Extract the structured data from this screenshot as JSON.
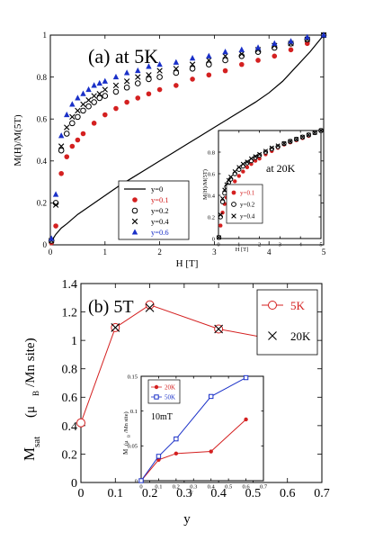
{
  "chart_data": [
    {
      "panel": "a",
      "type": "scatter",
      "title": "(a) at 5K",
      "xlabel": "H [T]",
      "ylabel": "M(H)/M(5T)",
      "xlim": [
        0,
        5
      ],
      "ylim": [
        0,
        1
      ],
      "xticks": [
        "0",
        "1",
        "2",
        "3",
        "4",
        "5"
      ],
      "yticks": [
        "0",
        "0.2",
        "0.4",
        "0.6",
        "0.8",
        "1"
      ],
      "legend_position": "lower-left",
      "series": [
        {
          "name": "y=0",
          "marker": "line",
          "color": "#000000",
          "x": [
            0,
            0.05,
            0.1,
            0.2,
            0.3,
            0.5,
            0.75,
            1,
            1.25,
            1.5,
            1.75,
            2,
            2.25,
            2.5,
            2.75,
            3,
            3.25,
            3.5,
            3.75,
            4,
            4.25,
            4.5,
            4.75,
            5
          ],
          "y": [
            0,
            0.03,
            0.05,
            0.08,
            0.1,
            0.145,
            0.19,
            0.235,
            0.28,
            0.32,
            0.36,
            0.4,
            0.44,
            0.48,
            0.52,
            0.56,
            0.6,
            0.64,
            0.68,
            0.725,
            0.78,
            0.85,
            0.92,
            1.0
          ]
        },
        {
          "name": "y=0.1",
          "marker": "filled-circle",
          "color": "#d42020",
          "x": [
            0.02,
            0.1,
            0.2,
            0.3,
            0.4,
            0.5,
            0.6,
            0.8,
            1.0,
            1.2,
            1.4,
            1.6,
            1.8,
            2.0,
            2.3,
            2.6,
            2.9,
            3.2,
            3.5,
            3.8,
            4.1,
            4.4,
            4.7,
            5.0
          ],
          "y": [
            0.01,
            0.09,
            0.34,
            0.42,
            0.47,
            0.5,
            0.53,
            0.58,
            0.62,
            0.65,
            0.68,
            0.7,
            0.72,
            0.74,
            0.76,
            0.79,
            0.81,
            0.83,
            0.86,
            0.88,
            0.9,
            0.93,
            0.96,
            1.0
          ]
        },
        {
          "name": "y=0.2",
          "marker": "open-circle",
          "color": "#000000",
          "x": [
            0.02,
            0.1,
            0.2,
            0.3,
            0.4,
            0.5,
            0.6,
            0.7,
            0.8,
            0.9,
            1.0,
            1.2,
            1.4,
            1.6,
            1.8,
            2.0,
            2.3,
            2.6,
            2.9,
            3.2,
            3.5,
            3.8,
            4.1,
            4.4,
            4.7,
            5.0
          ],
          "y": [
            0.02,
            0.2,
            0.45,
            0.53,
            0.58,
            0.61,
            0.64,
            0.66,
            0.68,
            0.7,
            0.71,
            0.73,
            0.75,
            0.77,
            0.79,
            0.8,
            0.82,
            0.84,
            0.86,
            0.88,
            0.9,
            0.92,
            0.94,
            0.96,
            0.98,
            1.0
          ]
        },
        {
          "name": "y=0.4",
          "marker": "cross",
          "color": "#000000",
          "x": [
            0.02,
            0.1,
            0.2,
            0.3,
            0.4,
            0.5,
            0.6,
            0.7,
            0.8,
            0.9,
            1.0,
            1.2,
            1.4,
            1.6,
            1.8,
            2.0,
            2.3,
            2.6,
            2.9,
            3.2,
            3.5,
            3.8,
            4.1,
            4.4,
            4.7,
            5.0
          ],
          "y": [
            0.02,
            0.19,
            0.47,
            0.56,
            0.61,
            0.64,
            0.67,
            0.69,
            0.71,
            0.72,
            0.74,
            0.76,
            0.78,
            0.8,
            0.81,
            0.83,
            0.84,
            0.86,
            0.88,
            0.9,
            0.91,
            0.93,
            0.95,
            0.96,
            0.98,
            1.0
          ]
        },
        {
          "name": "y=0.6",
          "marker": "filled-triangle",
          "color": "#1a30c8",
          "x": [
            0.02,
            0.1,
            0.2,
            0.3,
            0.4,
            0.5,
            0.6,
            0.7,
            0.8,
            0.9,
            1.0,
            1.2,
            1.4,
            1.6,
            1.8,
            2.0,
            2.3,
            2.6,
            2.9,
            3.2,
            3.5,
            3.8,
            4.1,
            4.4,
            4.7,
            5.0
          ],
          "y": [
            0.03,
            0.24,
            0.52,
            0.62,
            0.67,
            0.7,
            0.72,
            0.74,
            0.76,
            0.77,
            0.78,
            0.8,
            0.82,
            0.83,
            0.85,
            0.86,
            0.87,
            0.89,
            0.9,
            0.92,
            0.93,
            0.94,
            0.96,
            0.97,
            0.99,
            1.0
          ]
        }
      ],
      "inset": {
        "annotation": "at 20K",
        "xlabel": "H [T]",
        "ylabel": "M(H)/M(5T)",
        "xlim": [
          0,
          5
        ],
        "ylim": [
          0,
          1
        ],
        "xticks": [
          "0",
          "1",
          "2",
          "3",
          "4",
          "5"
        ],
        "yticks": [
          "0",
          "0.2",
          "0.4",
          "0.6",
          "0.8"
        ],
        "series": [
          {
            "name": "y=0.1",
            "marker": "filled-circle",
            "color": "#d42020",
            "x": [
              0.02,
              0.1,
              0.2,
              0.3,
              0.4,
              0.5,
              0.6,
              0.8,
              1.0,
              1.2,
              1.4,
              1.6,
              1.8,
              2.0,
              2.3,
              2.6,
              2.9,
              3.2,
              3.5,
              3.8,
              4.1,
              4.4,
              4.7,
              5.0
            ],
            "y": [
              0.01,
              0.12,
              0.24,
              0.32,
              0.38,
              0.43,
              0.47,
              0.53,
              0.58,
              0.62,
              0.66,
              0.69,
              0.72,
              0.74,
              0.78,
              0.81,
              0.84,
              0.87,
              0.89,
              0.91,
              0.93,
              0.95,
              0.98,
              1.0
            ]
          },
          {
            "name": "y=0.2",
            "marker": "open-circle",
            "color": "#000000",
            "x": [
              0.02,
              0.1,
              0.2,
              0.3,
              0.4,
              0.5,
              0.6,
              0.8,
              1.0,
              1.2,
              1.4,
              1.6,
              1.8,
              2.0,
              2.3,
              2.6,
              2.9,
              3.2,
              3.5,
              3.8,
              4.1,
              4.4,
              4.7,
              5.0
            ],
            "y": [
              0.01,
              0.2,
              0.34,
              0.42,
              0.48,
              0.52,
              0.55,
              0.6,
              0.64,
              0.67,
              0.7,
              0.72,
              0.75,
              0.77,
              0.8,
              0.83,
              0.85,
              0.88,
              0.9,
              0.92,
              0.94,
              0.96,
              0.98,
              1.0
            ]
          },
          {
            "name": "y=0.4",
            "marker": "cross",
            "color": "#000000",
            "x": [
              0.02,
              0.1,
              0.2,
              0.3,
              0.4,
              0.5,
              0.6,
              0.8,
              1.0,
              1.2,
              1.4,
              1.6,
              1.8,
              2.0,
              2.3,
              2.6,
              2.9,
              3.2,
              3.5,
              3.8,
              4.1,
              4.4,
              4.7,
              5.0
            ],
            "y": [
              0.01,
              0.22,
              0.37,
              0.45,
              0.5,
              0.54,
              0.57,
              0.62,
              0.66,
              0.69,
              0.71,
              0.74,
              0.76,
              0.78,
              0.81,
              0.84,
              0.86,
              0.88,
              0.9,
              0.92,
              0.94,
              0.96,
              0.98,
              1.0
            ]
          }
        ]
      }
    },
    {
      "panel": "b",
      "type": "line",
      "title": "(b) 5T",
      "xlabel": "y",
      "ylabel_main": "M",
      "ylabel_sub": "sat",
      "ylabel_rest": "(μ",
      "ylabel_sub2": "B",
      "ylabel_end": "/Mn site)",
      "xlim": [
        0,
        0.7
      ],
      "ylim": [
        0,
        1.4
      ],
      "xticks": [
        "0",
        "0.1",
        "0.2",
        "0.3",
        "0.4",
        "0.5",
        "0.6",
        "0.7"
      ],
      "yticks": [
        "0",
        "0.2",
        "0.4",
        "0.6",
        "0.8",
        "1",
        "1.2",
        "1.4"
      ],
      "legend_position": "top-right",
      "series": [
        {
          "name": "5K",
          "marker": "open-circle-line",
          "color": "#d42020",
          "x": [
            0,
            0.1,
            0.2,
            0.4,
            0.6
          ],
          "y": [
            0.42,
            1.09,
            1.25,
            1.08,
            0.99
          ]
        },
        {
          "name": "20K",
          "marker": "cross",
          "color": "#000000",
          "x": [
            0.1,
            0.2,
            0.4
          ],
          "y": [
            1.09,
            1.23,
            1.08
          ]
        }
      ],
      "inset": {
        "annotation": "10mT",
        "xlabel": "y",
        "ylabel_main": "M",
        "ylabel_rest": "(μ",
        "ylabel_sub2": "B",
        "ylabel_end": "/Mn site)",
        "xlim": [
          0,
          0.7
        ],
        "ylim": [
          0,
          0.15
        ],
        "xticks": [
          "0",
          "0.1",
          "0.2",
          "0.3",
          "0.4",
          "0.5",
          "0.6",
          "0.7"
        ],
        "yticks": [
          "0",
          "0.05",
          "0.1",
          "0.15"
        ],
        "series": [
          {
            "name": "20K",
            "marker": "filled-circle-line",
            "color": "#d42020",
            "x": [
              0,
              0.1,
              0.2,
              0.4,
              0.6
            ],
            "y": [
              0.0,
              0.03,
              0.039,
              0.042,
              0.088
            ]
          },
          {
            "name": "50K",
            "marker": "open-square-line",
            "color": "#1a30c8",
            "x": [
              0,
              0.1,
              0.2,
              0.4,
              0.6
            ],
            "y": [
              0.0,
              0.035,
              0.06,
              0.121,
              0.148
            ]
          }
        ]
      }
    }
  ]
}
